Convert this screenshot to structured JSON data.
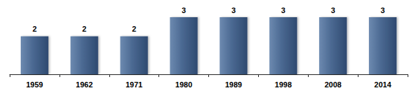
{
  "chart_data": {
    "type": "bar",
    "categories": [
      "1959",
      "1962",
      "1971",
      "1980",
      "1989",
      "1998",
      "2008",
      "2014"
    ],
    "values": [
      2,
      2,
      2,
      3,
      3,
      3,
      3,
      3
    ],
    "color": "#4a6891",
    "ylim": [
      0,
      3
    ],
    "grid": false,
    "data_labels": true,
    "tick_labels": "x"
  }
}
